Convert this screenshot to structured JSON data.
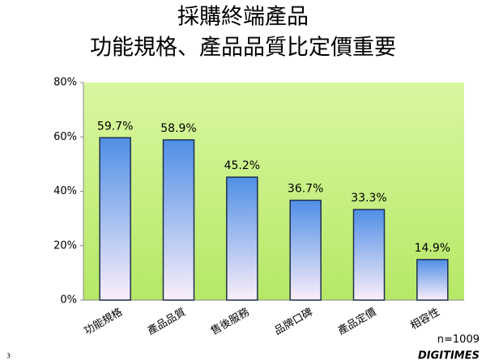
{
  "chart_data": {
    "type": "bar",
    "title": "採購終端產品",
    "subtitle": "功能規格、產品品質比定價重要",
    "categories": [
      "功能規格",
      "產品品質",
      "售後服務",
      "品牌口碑",
      "產品定價",
      "相容性"
    ],
    "values": [
      59.7,
      58.9,
      45.2,
      36.7,
      33.3,
      14.9
    ],
    "value_labels": [
      "59.7%",
      "58.9%",
      "45.2%",
      "36.7%",
      "33.3%",
      "14.9%"
    ],
    "color": "#4f8fe6",
    "ylim": [
      0,
      80
    ],
    "yticks": [
      {
        "value": 0,
        "label": "0%"
      },
      {
        "value": 20,
        "label": "20%"
      },
      {
        "value": 40,
        "label": "40%"
      },
      {
        "value": 60,
        "label": "60%"
      },
      {
        "value": 80,
        "label": "80%"
      }
    ],
    "grid": false,
    "note": "n=1009"
  },
  "slide": {
    "page_number": "3",
    "logo": "DIGITIMES"
  }
}
